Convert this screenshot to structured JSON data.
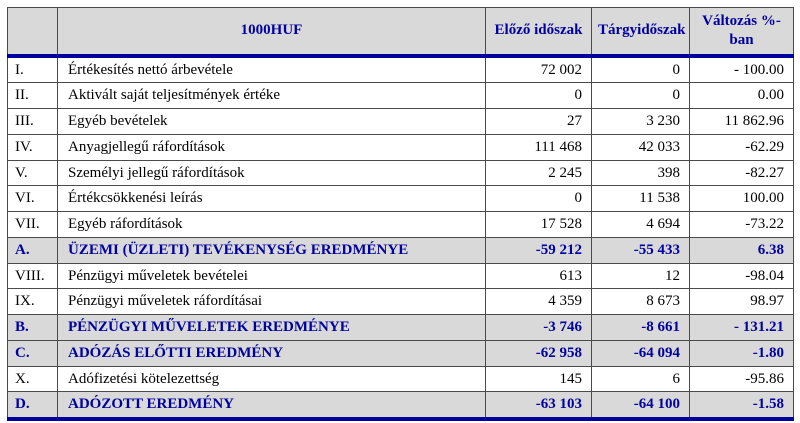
{
  "table": {
    "unit_header": "1000HUF",
    "columns": [
      "Előző időszak",
      "Tárgyidőszak",
      "Változás %-ban"
    ],
    "rows": [
      {
        "num": "I.",
        "label": "Értékesítés nettó árbevétele",
        "prev": "72 002",
        "curr": "0",
        "change": "- 100.00",
        "highlight": false
      },
      {
        "num": "II.",
        "label": "Aktivált saját teljesítmények értéke",
        "prev": "0",
        "curr": "0",
        "change": "0.00",
        "highlight": false
      },
      {
        "num": "III.",
        "label": "Egyéb bevételek",
        "prev": "27",
        "curr": "3 230",
        "change": "11 862.96",
        "highlight": false
      },
      {
        "num": "IV.",
        "label": "Anyagjellegű ráfordítások",
        "prev": "111 468",
        "curr": "42 033",
        "change": "-62.29",
        "highlight": false
      },
      {
        "num": "V.",
        "label": "Személyi jellegű ráfordítások",
        "prev": "2 245",
        "curr": "398",
        "change": "-82.27",
        "highlight": false
      },
      {
        "num": "VI.",
        "label": "Értékcsökkenési leírás",
        "prev": "0",
        "curr": "11 538",
        "change": "100.00",
        "highlight": false
      },
      {
        "num": "VII.",
        "label": "Egyéb ráfordítások",
        "prev": "17 528",
        "curr": "4 694",
        "change": "-73.22",
        "highlight": false
      },
      {
        "num": "A.",
        "label": "ÜZEMI (ÜZLETI) TEVÉKENYSÉG EREDMÉNYE",
        "prev": "-59 212",
        "curr": "-55 433",
        "change": "6.38",
        "highlight": true
      },
      {
        "num": "VIII.",
        "label": "Pénzügyi műveletek bevételei",
        "prev": "613",
        "curr": "12",
        "change": "-98.04",
        "highlight": false
      },
      {
        "num": "IX.",
        "label": "Pénzügyi műveletek ráfordításai",
        "prev": "4 359",
        "curr": "8 673",
        "change": "98.97",
        "highlight": false
      },
      {
        "num": "B.",
        "label": "PÉNZÜGYI MŰVELETEK EREDMÉNYE",
        "prev": "-3 746",
        "curr": "-8 661",
        "change": "- 131.21",
        "highlight": true
      },
      {
        "num": "C.",
        "label": "ADÓZÁS ELŐTTI EREDMÉNY",
        "prev": "-62 958",
        "curr": "-64 094",
        "change": "-1.80",
        "highlight": true
      },
      {
        "num": "X.",
        "label": "Adófizetési kötelezettség",
        "prev": "145",
        "curr": "6",
        "change": "-95.86",
        "highlight": false
      },
      {
        "num": "D.",
        "label": "ADÓZOTT EREDMÉNY",
        "prev": "-63 103",
        "curr": "-64 100",
        "change": "-1.58",
        "highlight": true
      }
    ]
  },
  "colors": {
    "navy": "#0000a0",
    "header_background": "#d9d9d9",
    "highlight_background": "#d9d9d9",
    "grid_border": "#4a4a4a"
  }
}
